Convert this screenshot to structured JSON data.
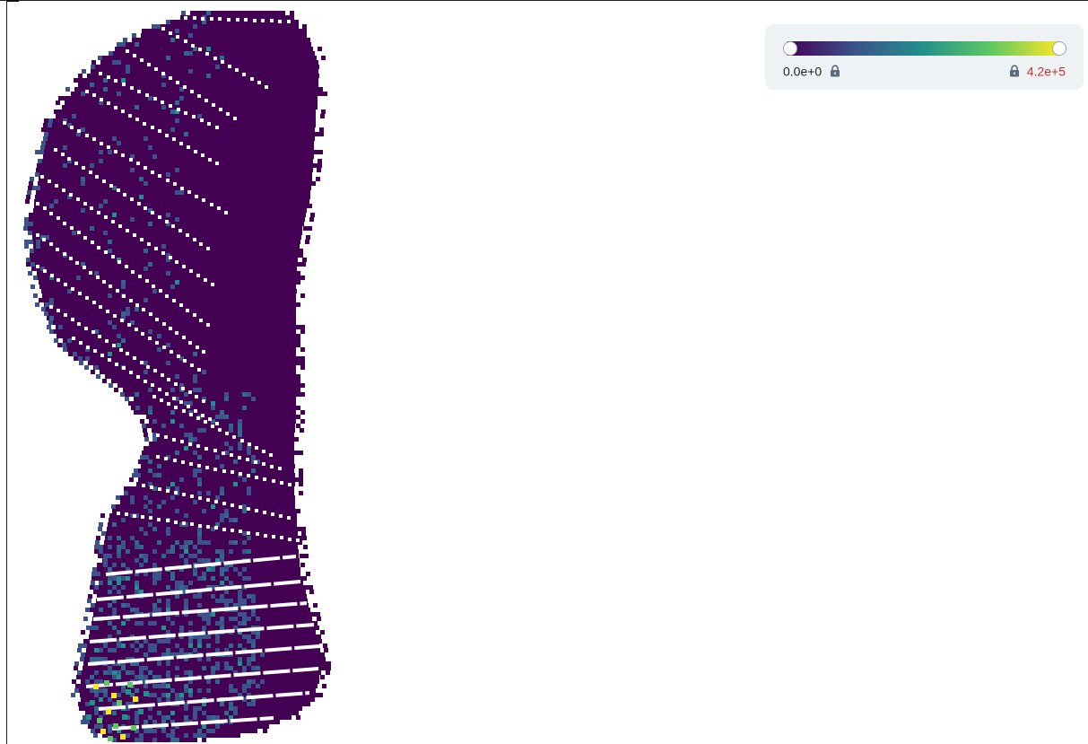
{
  "colorbar": {
    "colormap": "viridis",
    "colors": [
      "#440154",
      "#3b528b",
      "#21918c",
      "#5ec962",
      "#fde725"
    ],
    "min_label": "0.0e+0",
    "max_label": "4.2e+5",
    "min_locked": true,
    "max_locked": true,
    "icon_min": "lock-icon",
    "icon_max": "lock-icon"
  },
  "chart_data": {
    "type": "heatmap",
    "colormap": "viridis",
    "value_range": [
      0,
      420000
    ],
    "background_value": 0,
    "description_free": true,
    "legend_placement": "top-right"
  }
}
